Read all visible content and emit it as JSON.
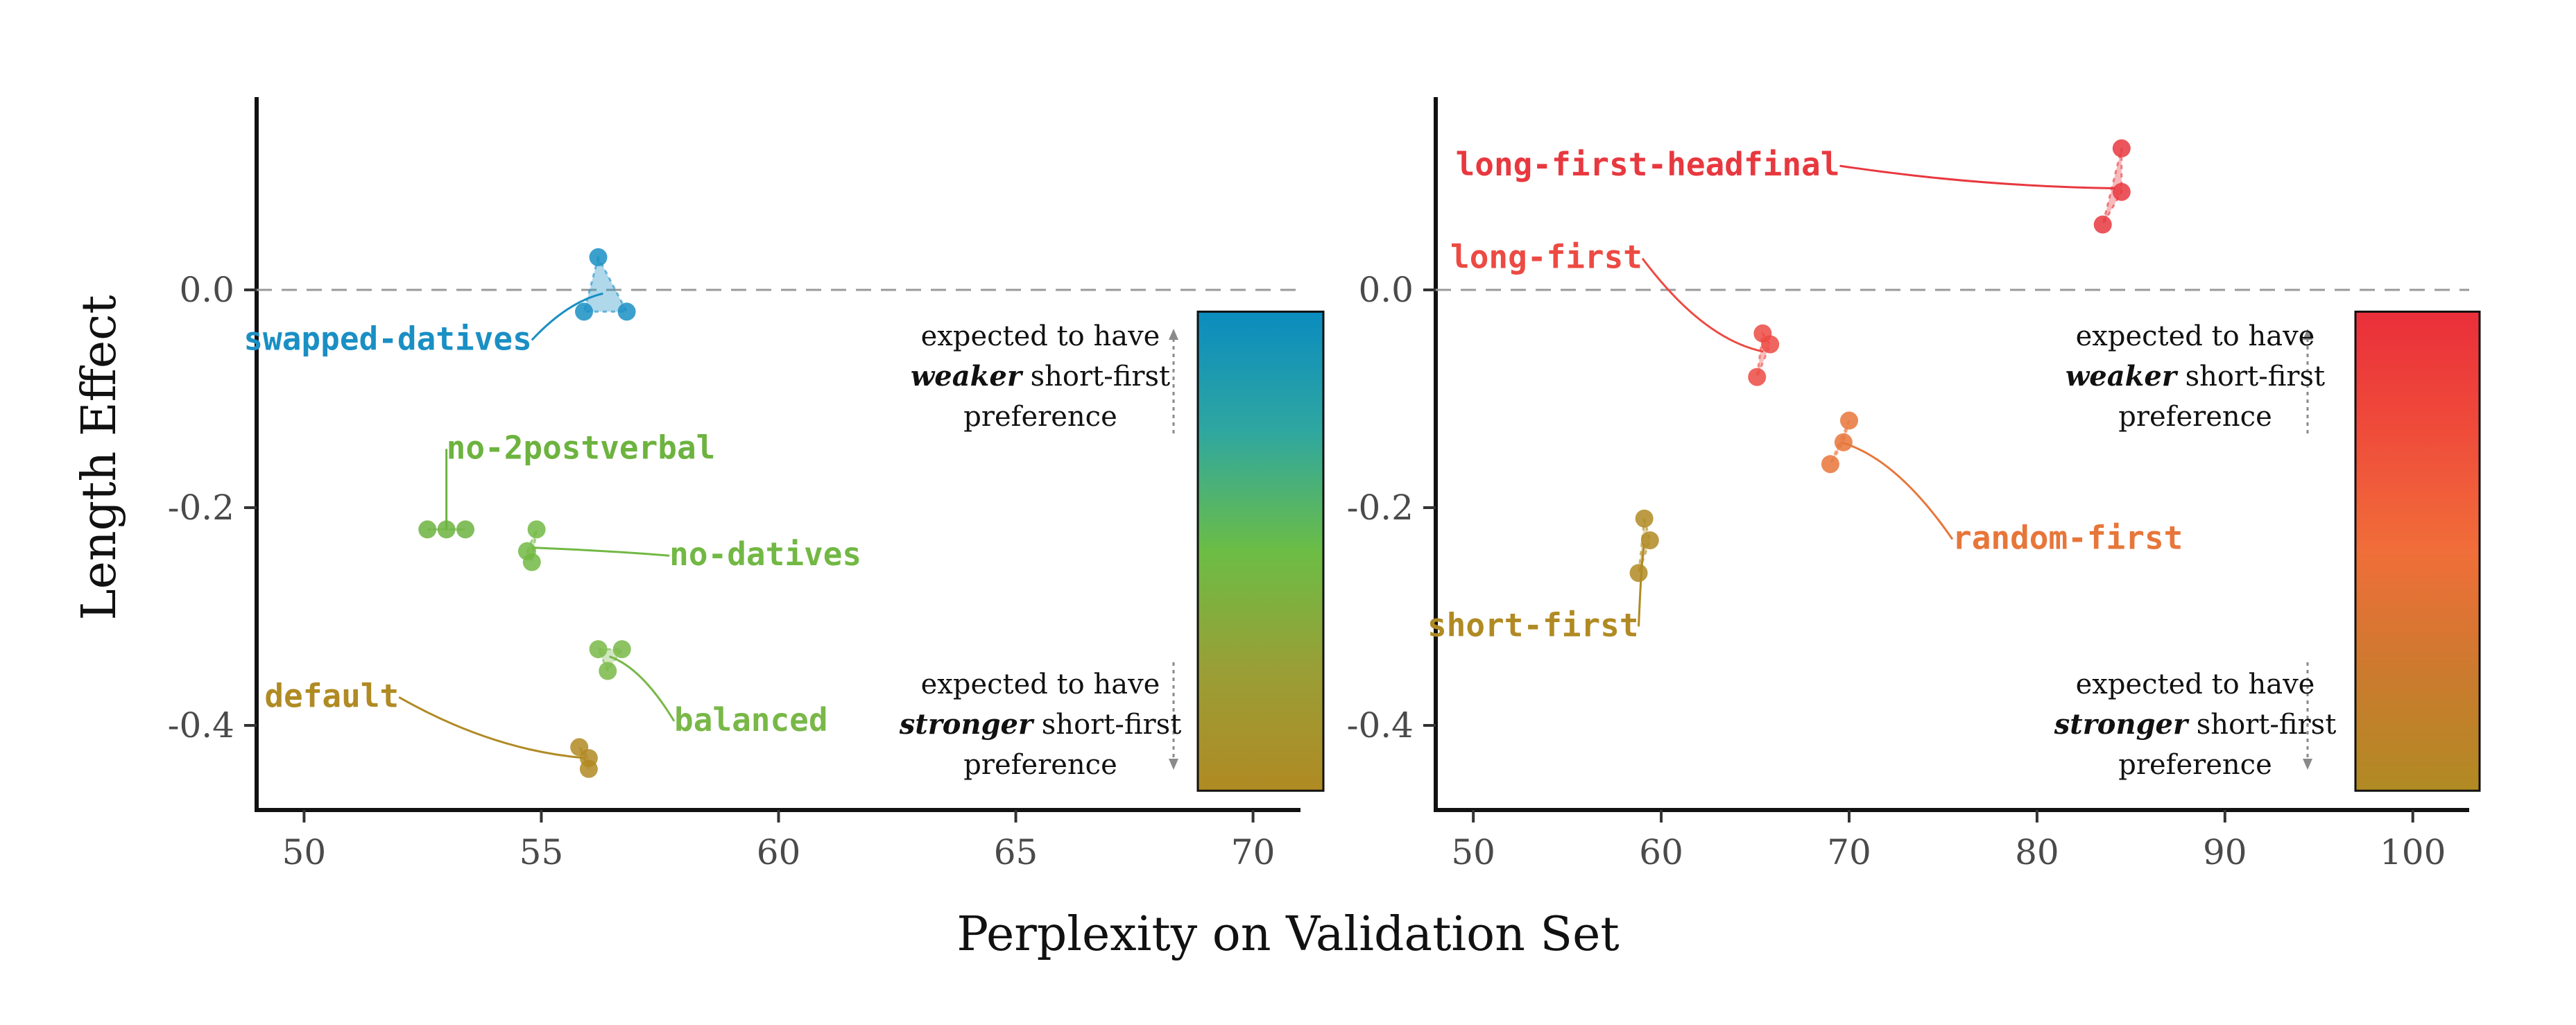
{
  "chart_data": {
    "xlabel": "Perplexity on Validation Set",
    "ylabel": "Length Effect",
    "reference_line_y": 0.0,
    "ylim": [
      -0.48,
      0.18
    ],
    "ytick_labels": [
      "0.0",
      "-0.2",
      "-0.4"
    ],
    "yticks": [
      0.0,
      -0.2,
      -0.4
    ],
    "panels": [
      {
        "type": "scatter",
        "xlim": [
          49.0,
          71.0
        ],
        "xticks": [
          50,
          55,
          60,
          65,
          70
        ],
        "xtick_labels": [
          "50",
          "55",
          "60",
          "65",
          "70"
        ],
        "series": [
          {
            "name": "swapped-datives",
            "color": "#1a8fc4",
            "points": [
              [
                56.2,
                0.03
              ],
              [
                55.9,
                -0.02
              ],
              [
                56.8,
                -0.02
              ]
            ],
            "label_x": 54.8,
            "label_y": -0.055
          },
          {
            "name": "no-2postverbal",
            "color": "#6db33f",
            "points": [
              [
                52.6,
                -0.22
              ],
              [
                53.0,
                -0.22
              ],
              [
                53.4,
                -0.22
              ]
            ],
            "label_x": 53.0,
            "label_y": -0.155
          },
          {
            "name": "no-datives",
            "color": "#72b844",
            "points": [
              [
                54.7,
                -0.24
              ],
              [
                54.9,
                -0.22
              ],
              [
                54.8,
                -0.25
              ]
            ],
            "label_x": 57.7,
            "label_y": -0.253
          },
          {
            "name": "balanced",
            "color": "#79b848",
            "points": [
              [
                56.2,
                -0.33
              ],
              [
                56.7,
                -0.33
              ],
              [
                56.4,
                -0.35
              ]
            ],
            "label_x": 57.8,
            "label_y": -0.405
          },
          {
            "name": "default",
            "color": "#b08a23",
            "points": [
              [
                55.8,
                -0.42
              ],
              [
                56.0,
                -0.43
              ],
              [
                56.0,
                -0.44
              ]
            ],
            "label_x": 52.0,
            "label_y": -0.383
          }
        ],
        "colorbar": {
          "colors": [
            "#0a8cbf",
            "#2fa7a0",
            "#6cbd45",
            "#9a9e36",
            "#b08a23"
          ],
          "top_y": -0.02,
          "bottom_y": -0.46
        },
        "notes": [
          {
            "lines": [
              [
                "expected to have",
                ""
              ],
              [
                "weaker",
                " short-first"
              ],
              [
                "preference",
                ""
              ]
            ],
            "position": "upper"
          },
          {
            "lines": [
              [
                "expected to have",
                ""
              ],
              [
                "stronger",
                " short-first"
              ],
              [
                "preference",
                ""
              ]
            ],
            "position": "lower"
          }
        ]
      },
      {
        "type": "scatter",
        "xlim": [
          48.0,
          103.0
        ],
        "xticks": [
          50,
          60,
          70,
          80,
          90,
          100
        ],
        "xtick_labels": [
          "50",
          "60",
          "70",
          "80",
          "90",
          "100"
        ],
        "series": [
          {
            "name": "long-first-headfinal",
            "color": "#e8383f",
            "points": [
              [
                84.5,
                0.13
              ],
              [
                84.5,
                0.09
              ],
              [
                83.5,
                0.06
              ]
            ],
            "label_x": 69.5,
            "label_y": 0.105
          },
          {
            "name": "long-first",
            "color": "#ec4a43",
            "points": [
              [
                65.4,
                -0.04
              ],
              [
                65.8,
                -0.05
              ],
              [
                65.1,
                -0.08
              ]
            ],
            "label_x": 59.0,
            "label_y": 0.02
          },
          {
            "name": "random-first",
            "color": "#e7763a",
            "points": [
              [
                70.0,
                -0.12
              ],
              [
                69.7,
                -0.14
              ],
              [
                69.0,
                -0.16
              ]
            ],
            "label_x": 75.5,
            "label_y": -0.238
          },
          {
            "name": "short-first",
            "color": "#b08a23",
            "points": [
              [
                59.1,
                -0.21
              ],
              [
                59.4,
                -0.23
              ],
              [
                58.8,
                -0.26
              ]
            ],
            "label_x": 58.8,
            "label_y": -0.318
          }
        ],
        "colorbar": {
          "colors": [
            "#ea2f3a",
            "#ef4c3a",
            "#f06e39",
            "#cc7a2e",
            "#b08a23"
          ],
          "top_y": -0.02,
          "bottom_y": -0.46
        },
        "notes": [
          {
            "lines": [
              [
                "expected to have",
                ""
              ],
              [
                "weaker",
                " short-first"
              ],
              [
                "preference",
                ""
              ]
            ],
            "position": "upper"
          },
          {
            "lines": [
              [
                "expected to have",
                ""
              ],
              [
                "stronger",
                " short-first"
              ],
              [
                "preference",
                ""
              ]
            ],
            "position": "lower"
          }
        ]
      }
    ]
  }
}
